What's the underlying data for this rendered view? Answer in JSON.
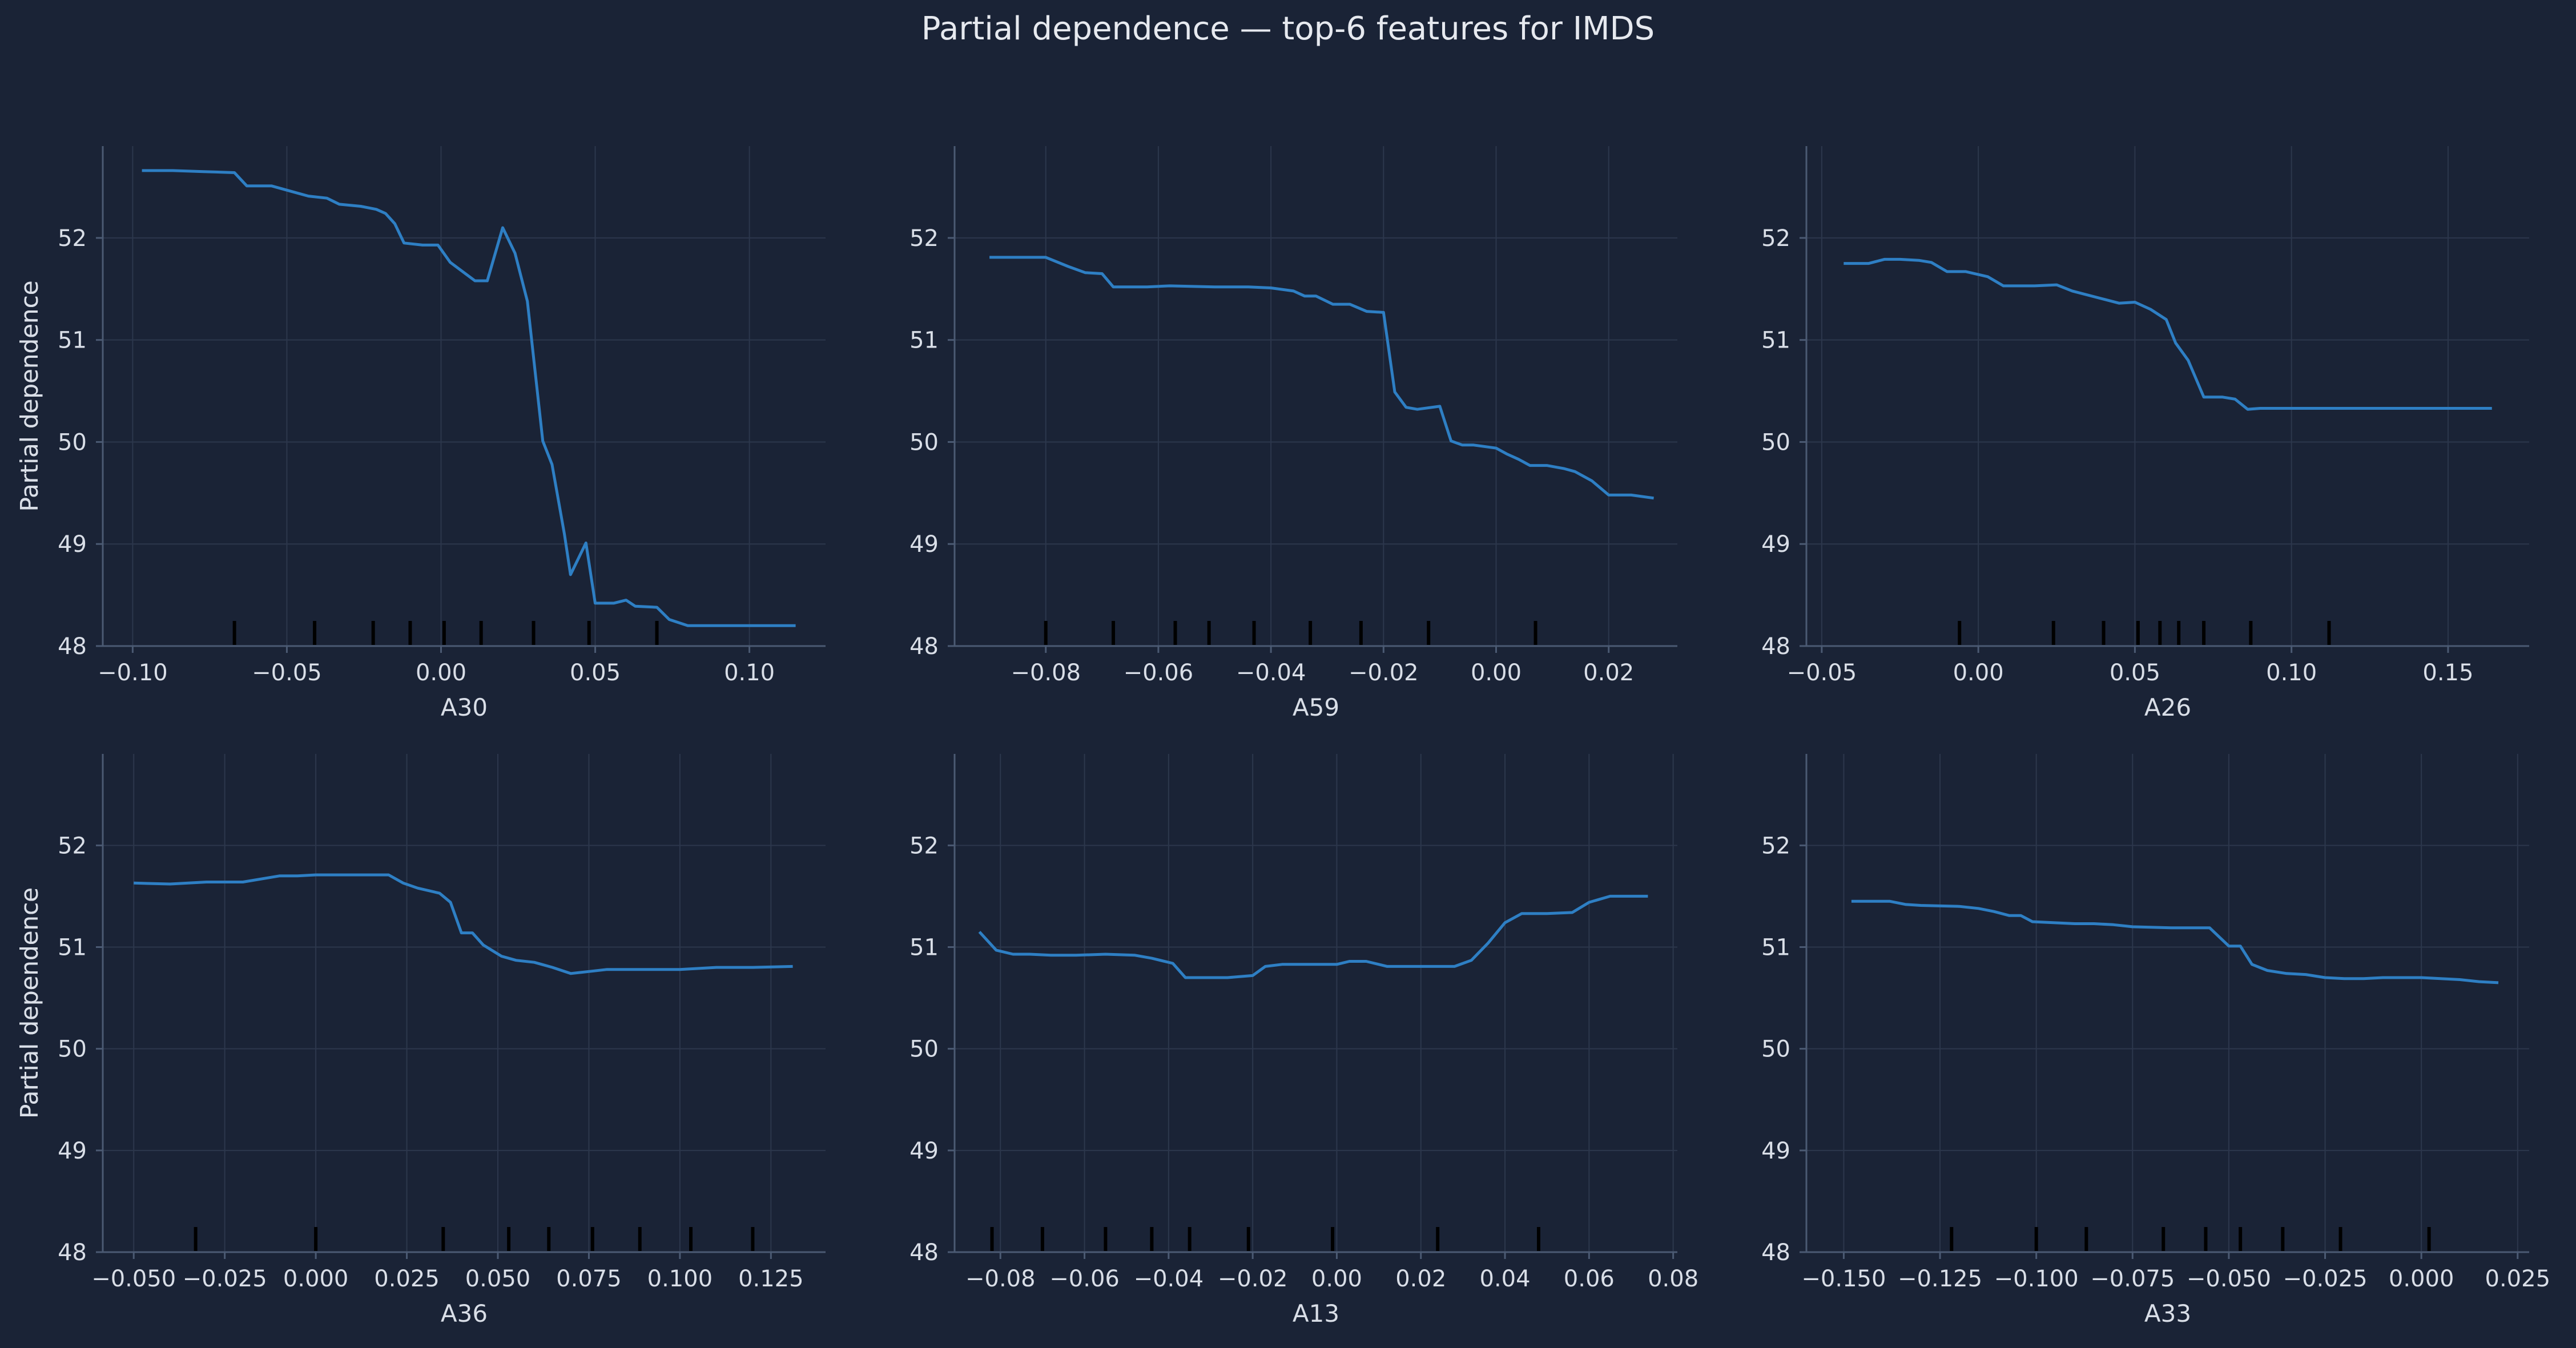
{
  "figure": {
    "title": "Partial dependence — top-6 features for IMDS",
    "colors": {
      "background": "#1a2336",
      "line": "#2e7fc4",
      "grid": "#2c374c",
      "axis": "#4b5a73",
      "text": "#d9dee7",
      "rug": "#000000"
    }
  },
  "chart_data": [
    {
      "type": "line",
      "xlabel": "A30",
      "ylabel": "Partial dependence",
      "xlim": [
        -0.1097,
        0.1247
      ],
      "ylim": [
        48.0,
        52.9
      ],
      "xticks": [
        -0.1,
        -0.05,
        0.0,
        0.05,
        0.1
      ],
      "xtick_labels": [
        "−0.10",
        "−0.05",
        "0.00",
        "0.05",
        "0.10"
      ],
      "yticks": [
        48,
        49,
        50,
        51,
        52
      ],
      "ytick_labels": [
        "48",
        "49",
        "50",
        "51",
        "52"
      ],
      "x": [
        -0.097,
        -0.087,
        -0.077,
        -0.067,
        -0.063,
        -0.055,
        -0.049,
        -0.043,
        -0.037,
        -0.033,
        -0.026,
        -0.021,
        -0.018,
        -0.015,
        -0.012,
        -0.006,
        -0.001,
        0.003,
        0.011,
        0.015,
        0.02,
        0.024,
        0.028,
        0.033,
        0.036,
        0.04,
        0.042,
        0.047,
        0.05,
        0.056,
        0.06,
        0.063,
        0.07,
        0.074,
        0.08,
        0.09,
        0.1,
        0.11,
        0.115
      ],
      "y": [
        52.66,
        52.66,
        52.65,
        52.64,
        52.51,
        52.51,
        52.46,
        52.41,
        52.39,
        52.33,
        52.31,
        52.28,
        52.24,
        52.14,
        51.95,
        51.93,
        51.93,
        51.76,
        51.58,
        51.58,
        52.1,
        51.85,
        51.38,
        50.01,
        49.78,
        49.1,
        48.7,
        49.01,
        48.42,
        48.42,
        48.45,
        48.39,
        48.38,
        48.26,
        48.2,
        48.2,
        48.2,
        48.2,
        48.2
      ],
      "rug": [
        -0.067,
        -0.041,
        -0.022,
        -0.01,
        0.001,
        0.013,
        0.03,
        0.048,
        0.07
      ]
    },
    {
      "type": "line",
      "xlabel": "A59",
      "ylabel": "Partial dependence",
      "xlim": [
        -0.0962,
        0.0322
      ],
      "ylim": [
        48.0,
        52.9
      ],
      "xticks": [
        -0.08,
        -0.06,
        -0.04,
        -0.02,
        0.0,
        0.02
      ],
      "xtick_labels": [
        "−0.08",
        "−0.06",
        "−0.04",
        "−0.02",
        "0.00",
        "0.02"
      ],
      "yticks": [
        48,
        49,
        50,
        51,
        52
      ],
      "ytick_labels": [
        "48",
        "49",
        "50",
        "51",
        "52"
      ],
      "x": [
        -0.09,
        -0.084,
        -0.08,
        -0.076,
        -0.073,
        -0.07,
        -0.068,
        -0.062,
        -0.058,
        -0.05,
        -0.044,
        -0.04,
        -0.036,
        -0.034,
        -0.032,
        -0.029,
        -0.026,
        -0.023,
        -0.02,
        -0.018,
        -0.016,
        -0.014,
        -0.01,
        -0.008,
        -0.006,
        -0.004,
        0.0,
        0.002,
        0.004,
        0.006,
        0.009,
        0.012,
        0.014,
        0.017,
        0.02,
        0.024,
        0.028
      ],
      "y": [
        51.81,
        51.81,
        51.81,
        51.72,
        51.66,
        51.65,
        51.52,
        51.52,
        51.53,
        51.52,
        51.52,
        51.51,
        51.48,
        51.43,
        51.43,
        51.35,
        51.35,
        51.28,
        51.27,
        50.49,
        50.34,
        50.32,
        50.35,
        50.01,
        49.97,
        49.97,
        49.94,
        49.88,
        49.83,
        49.77,
        49.77,
        49.74,
        49.71,
        49.62,
        49.48,
        49.48,
        49.45
      ],
      "rug": [
        -0.08,
        -0.068,
        -0.057,
        -0.051,
        -0.043,
        -0.033,
        -0.024,
        -0.012,
        0.007
      ]
    },
    {
      "type": "line",
      "xlabel": "A26",
      "ylabel": "Partial dependence",
      "xlim": [
        -0.0549,
        0.1759
      ],
      "ylim": [
        48.0,
        52.9
      ],
      "xticks": [
        -0.05,
        0.0,
        0.05,
        0.1,
        0.15
      ],
      "xtick_labels": [
        "−0.05",
        "0.00",
        "0.05",
        "0.10",
        "0.15"
      ],
      "yticks": [
        48,
        49,
        50,
        51,
        52
      ],
      "ytick_labels": [
        "48",
        "49",
        "50",
        "51",
        "52"
      ],
      "x": [
        -0.043,
        -0.035,
        -0.03,
        -0.025,
        -0.019,
        -0.015,
        -0.01,
        -0.004,
        0.003,
        0.008,
        0.018,
        0.025,
        0.03,
        0.04,
        0.045,
        0.05,
        0.055,
        0.06,
        0.063,
        0.067,
        0.072,
        0.078,
        0.082,
        0.086,
        0.09,
        0.1,
        0.12,
        0.14,
        0.164
      ],
      "y": [
        51.75,
        51.75,
        51.79,
        51.79,
        51.78,
        51.76,
        51.67,
        51.67,
        51.62,
        51.53,
        51.53,
        51.54,
        51.48,
        51.4,
        51.36,
        51.37,
        51.3,
        51.2,
        50.97,
        50.8,
        50.44,
        50.44,
        50.42,
        50.32,
        50.33,
        50.33,
        50.33,
        50.33,
        50.33
      ],
      "rug": [
        -0.006,
        0.024,
        0.04,
        0.051,
        0.058,
        0.064,
        0.072,
        0.087,
        0.112
      ]
    },
    {
      "type": "line",
      "xlabel": "A36",
      "ylabel": "Partial dependence",
      "xlim": [
        -0.0585,
        0.14
      ],
      "ylim": [
        48.0,
        52.9
      ],
      "xticks": [
        -0.05,
        -0.025,
        0.0,
        0.025,
        0.05,
        0.075,
        0.1,
        0.125
      ],
      "xtick_labels": [
        "−0.050",
        "−0.025",
        "0.000",
        "0.025",
        "0.050",
        "0.075",
        "0.100",
        "0.125"
      ],
      "yticks": [
        48,
        49,
        50,
        51,
        52
      ],
      "ytick_labels": [
        "48",
        "49",
        "50",
        "51",
        "52"
      ],
      "x": [
        -0.05,
        -0.04,
        -0.03,
        -0.02,
        -0.01,
        -0.005,
        0.0,
        0.01,
        0.02,
        0.024,
        0.028,
        0.034,
        0.037,
        0.04,
        0.043,
        0.046,
        0.051,
        0.055,
        0.06,
        0.065,
        0.07,
        0.075,
        0.08,
        0.09,
        0.1,
        0.11,
        0.12,
        0.131
      ],
      "y": [
        51.63,
        51.62,
        51.64,
        51.64,
        51.7,
        51.7,
        51.71,
        51.71,
        51.71,
        51.63,
        51.58,
        51.53,
        51.44,
        51.14,
        51.14,
        51.02,
        50.91,
        50.87,
        50.85,
        50.8,
        50.74,
        50.76,
        50.78,
        50.78,
        50.78,
        50.8,
        50.8,
        50.81
      ],
      "rug": [
        -0.033,
        0.0,
        0.035,
        0.053,
        0.064,
        0.076,
        0.089,
        0.103,
        0.12
      ]
    },
    {
      "type": "line",
      "xlabel": "A13",
      "ylabel": "Partial dependence",
      "xlim": [
        -0.0909,
        0.081
      ],
      "ylim": [
        48.0,
        52.9
      ],
      "xticks": [
        -0.08,
        -0.06,
        -0.04,
        -0.02,
        0.0,
        0.02,
        0.04,
        0.06,
        0.08
      ],
      "xtick_labels": [
        "−0.08",
        "−0.06",
        "−0.04",
        "−0.02",
        "0.00",
        "0.02",
        "0.04",
        "0.06",
        "0.08"
      ],
      "yticks": [
        48,
        49,
        50,
        51,
        52
      ],
      "ytick_labels": [
        "48",
        "49",
        "50",
        "51",
        "52"
      ],
      "x": [
        -0.085,
        -0.081,
        -0.077,
        -0.073,
        -0.068,
        -0.062,
        -0.055,
        -0.048,
        -0.044,
        -0.039,
        -0.036,
        -0.032,
        -0.026,
        -0.02,
        -0.017,
        -0.013,
        -0.006,
        0.0,
        0.003,
        0.007,
        0.012,
        0.02,
        0.028,
        0.032,
        0.036,
        0.04,
        0.044,
        0.05,
        0.056,
        0.06,
        0.065,
        0.074
      ],
      "y": [
        51.15,
        50.97,
        50.93,
        50.93,
        50.92,
        50.92,
        50.93,
        50.92,
        50.89,
        50.84,
        50.7,
        50.7,
        50.7,
        50.72,
        50.81,
        50.83,
        50.83,
        50.83,
        50.86,
        50.86,
        50.81,
        50.81,
        50.81,
        50.87,
        51.04,
        51.24,
        51.33,
        51.33,
        51.34,
        51.44,
        51.5,
        51.5
      ],
      "rug": [
        -0.082,
        -0.07,
        -0.055,
        -0.044,
        -0.035,
        -0.021,
        -0.001,
        0.024,
        0.048
      ]
    },
    {
      "type": "line",
      "xlabel": "A33",
      "ylabel": "Partial dependence",
      "xlim": [
        -0.1597,
        0.028
      ],
      "ylim": [
        48.0,
        52.9
      ],
      "xticks": [
        -0.15,
        -0.125,
        -0.1,
        -0.075,
        -0.05,
        -0.025,
        0.0,
        0.025
      ],
      "xtick_labels": [
        "−0.150",
        "−0.125",
        "−0.100",
        "−0.075",
        "−0.050",
        "−0.025",
        "0.000",
        "0.025"
      ],
      "yticks": [
        48,
        49,
        50,
        51,
        52
      ],
      "ytick_labels": [
        "48",
        "49",
        "50",
        "51",
        "52"
      ],
      "x": [
        -0.148,
        -0.138,
        -0.134,
        -0.13,
        -0.12,
        -0.115,
        -0.111,
        -0.107,
        -0.104,
        -0.101,
        -0.09,
        -0.085,
        -0.08,
        -0.075,
        -0.065,
        -0.055,
        -0.05,
        -0.047,
        -0.044,
        -0.04,
        -0.035,
        -0.03,
        -0.025,
        -0.02,
        -0.015,
        -0.01,
        0.0,
        0.005,
        0.01,
        0.015,
        0.02
      ],
      "y": [
        51.45,
        51.45,
        51.42,
        51.41,
        51.4,
        51.38,
        51.35,
        51.31,
        51.31,
        51.25,
        51.23,
        51.23,
        51.22,
        51.2,
        51.19,
        51.19,
        51.01,
        51.01,
        50.83,
        50.77,
        50.74,
        50.73,
        50.7,
        50.69,
        50.69,
        50.7,
        50.7,
        50.69,
        50.68,
        50.66,
        50.65
      ],
      "rug": [
        -0.122,
        -0.1,
        -0.087,
        -0.067,
        -0.056,
        -0.047,
        -0.036,
        -0.021,
        0.002
      ]
    }
  ]
}
